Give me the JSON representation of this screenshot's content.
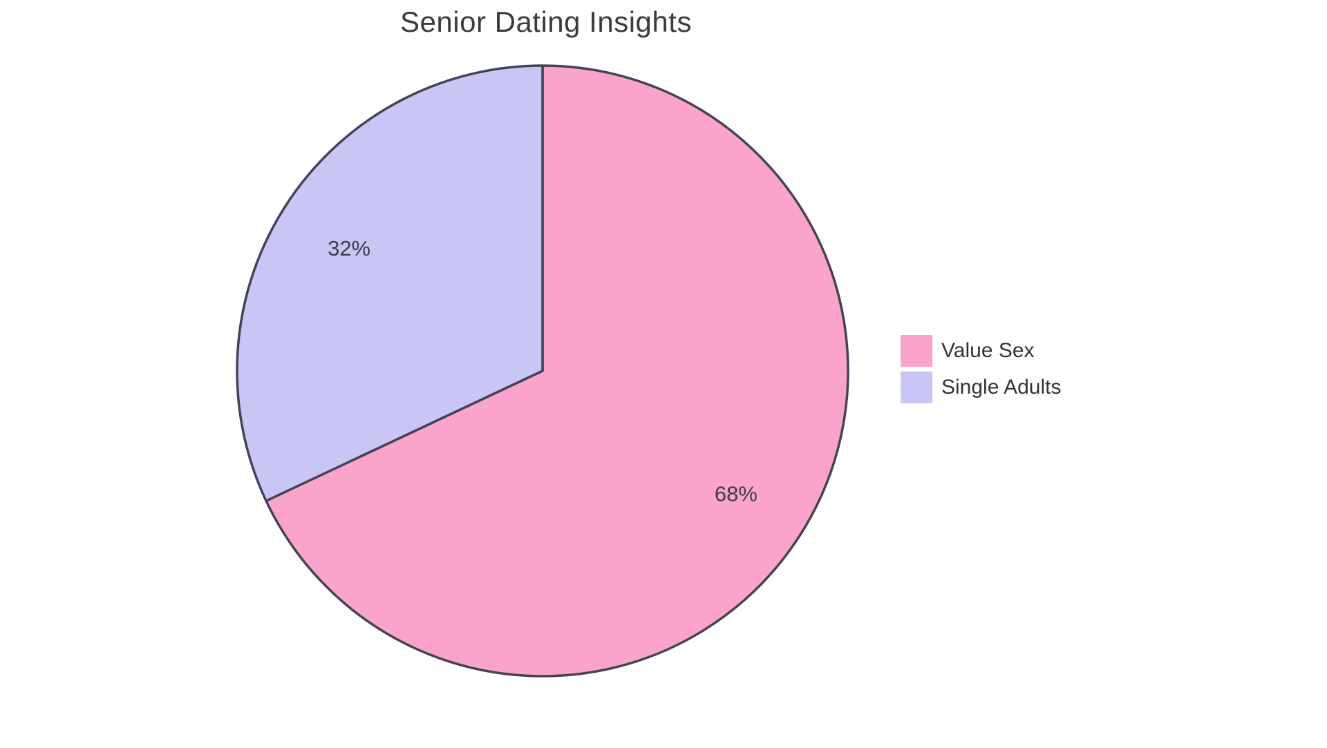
{
  "chart_data": {
    "type": "pie",
    "title": "Senior Dating Insights",
    "labels": [
      "Value Sex",
      "Single Adults"
    ],
    "values": [
      68,
      32
    ],
    "percent_labels": [
      "68%",
      "32%"
    ],
    "colors": [
      "#FAA3CB",
      "#C9C6F5"
    ],
    "stroke_color": "#434356",
    "label_color": "#3C3C44",
    "title_color": "#3B3B3F",
    "start_angle_deg": 0,
    "direction": "clockwise",
    "legend_position": "right",
    "background": "#FFFFFF"
  }
}
